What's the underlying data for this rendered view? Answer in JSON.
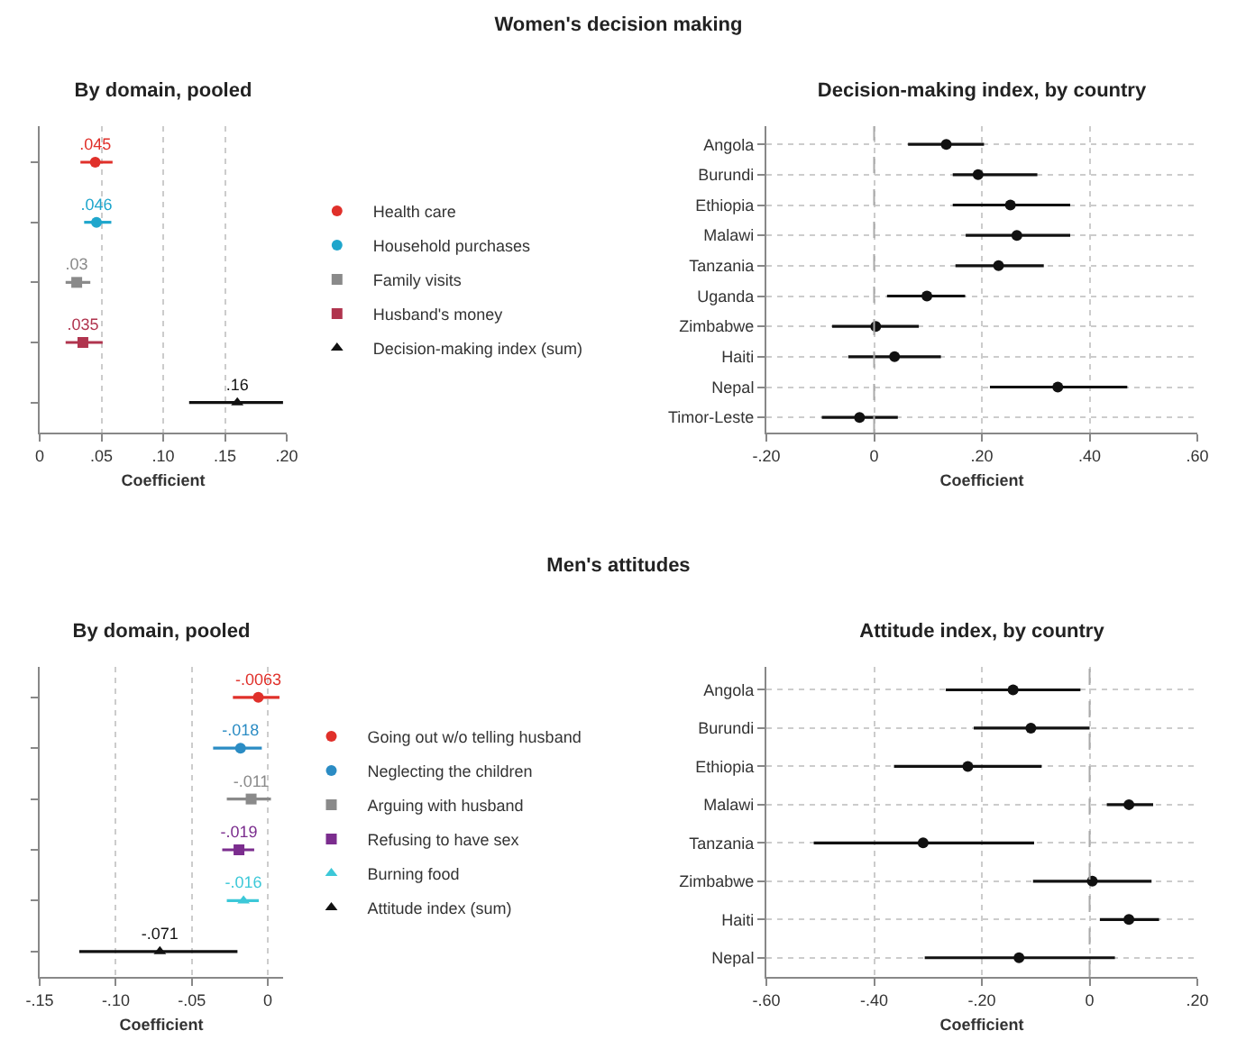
{
  "chart_data": [
    {
      "type": "scatter",
      "orientation": "horizontal",
      "title": "By domain, pooled",
      "annotations": [
        "Women's decision making"
      ],
      "xlabel": "Coefficient",
      "categories": [
        null,
        null,
        null,
        null,
        null
      ],
      "xlim": [
        0,
        0.2
      ],
      "xticks": [
        {
          "value": 0,
          "label": "0"
        },
        {
          "value": 0.05,
          "label": ".05"
        },
        {
          "value": 0.1,
          "label": ".10"
        },
        {
          "value": 0.15,
          "label": ".15"
        },
        {
          "value": 0.2,
          "label": ".20"
        }
      ],
      "grid": "x",
      "legend": "right",
      "tick_labels": "x",
      "series": [
        {
          "name": "Health care",
          "color": "#e0302a",
          "marker": "circle",
          "values": [
            0.045,
            null,
            null,
            null,
            null
          ],
          "errors": [
            [
              0.033,
              0.059
            ],
            null,
            null,
            null,
            null
          ],
          "value_labels": [
            ".045",
            null,
            null,
            null,
            null
          ]
        },
        {
          "name": "Household purchases",
          "color": "#1fa6cc",
          "marker": "circle",
          "values": [
            null,
            0.046,
            null,
            null,
            null
          ],
          "errors": [
            null,
            [
              0.036,
              0.058
            ],
            null,
            null,
            null
          ],
          "value_labels": [
            null,
            ".046",
            null,
            null,
            null
          ]
        },
        {
          "name": "Family visits",
          "color": "#8a8a8a",
          "marker": "square",
          "values": [
            null,
            null,
            0.03,
            null,
            null
          ],
          "errors": [
            null,
            null,
            [
              0.021,
              0.041
            ],
            null,
            null
          ],
          "value_labels": [
            null,
            null,
            ".03",
            null,
            null
          ]
        },
        {
          "name": "Husband's money",
          "color": "#b0344e",
          "marker": "square",
          "values": [
            null,
            null,
            null,
            0.035,
            null
          ],
          "errors": [
            null,
            null,
            null,
            [
              0.021,
              0.051
            ],
            null
          ],
          "value_labels": [
            null,
            null,
            null,
            ".035",
            null
          ]
        },
        {
          "name": "Decision-making index (sum)",
          "color": "#111111",
          "marker": "triangle",
          "values": [
            null,
            null,
            null,
            null,
            0.16
          ],
          "errors": [
            null,
            null,
            null,
            null,
            [
              0.121,
              0.197
            ]
          ],
          "value_labels": [
            null,
            null,
            null,
            null,
            ".16"
          ]
        }
      ]
    },
    {
      "type": "scatter",
      "orientation": "horizontal",
      "title": "Decision-making index, by country",
      "xlabel": "Coefficient",
      "categories": [
        "Angola",
        "Burundi",
        "Ethiopia",
        "Malawi",
        "Tanzania",
        "Uganda",
        "Zimbabwe",
        "Haiti",
        "Nepal",
        "Timor-Leste"
      ],
      "xlim": [
        -0.2,
        0.6
      ],
      "xticks": [
        {
          "value": -0.2,
          "label": "-.20"
        },
        {
          "value": 0,
          "label": "0"
        },
        {
          "value": 0.2,
          "label": ".20"
        },
        {
          "value": 0.4,
          "label": ".40"
        },
        {
          "value": 0.6,
          "label": ".60"
        }
      ],
      "grid": true,
      "ref_lines": [
        {
          "axis": "x",
          "value": 0,
          "line_style": "dashed",
          "color": "#aaaaaa"
        }
      ],
      "series": [
        {
          "color": "#111111",
          "marker": "circle",
          "values": [
            0.134,
            0.193,
            0.253,
            0.265,
            0.231,
            0.098,
            0.003,
            0.038,
            0.341,
            -0.027
          ],
          "errors": [
            [
              0.063,
              0.204
            ],
            [
              0.146,
              0.303
            ],
            [
              0.146,
              0.364
            ],
            [
              0.17,
              0.364
            ],
            [
              0.151,
              0.315
            ],
            [
              0.024,
              0.169
            ],
            [
              -0.078,
              0.083
            ],
            [
              -0.048,
              0.124
            ],
            [
              0.215,
              0.47
            ],
            [
              -0.097,
              0.044
            ]
          ]
        }
      ]
    },
    {
      "type": "scatter",
      "orientation": "horizontal",
      "title": "By domain, pooled",
      "annotations": [
        "Men's attitudes"
      ],
      "xlabel": "Coefficient",
      "categories": [
        null,
        null,
        null,
        null,
        null,
        null
      ],
      "xlim": [
        -0.15,
        0.01
      ],
      "xticks": [
        {
          "value": -0.15,
          "label": "-.15"
        },
        {
          "value": -0.1,
          "label": "-.10"
        },
        {
          "value": -0.05,
          "label": "-.05"
        },
        {
          "value": 0,
          "label": "0"
        }
      ],
      "grid": "x",
      "legend": "right",
      "tick_labels": "x",
      "series": [
        {
          "name": "Going out w/o telling husband",
          "color": "#e0302a",
          "marker": "circle",
          "values": [
            -0.0063,
            null,
            null,
            null,
            null,
            null
          ],
          "errors": [
            [
              -0.023,
              0.0076
            ],
            null,
            null,
            null,
            null,
            null
          ],
          "value_labels": [
            "-.0063",
            null,
            null,
            null,
            null,
            null
          ]
        },
        {
          "name": "Neglecting the children",
          "color": "#2b8cc4",
          "marker": "circle",
          "values": [
            null,
            -0.018,
            null,
            null,
            null,
            null
          ],
          "errors": [
            null,
            [
              -0.036,
              -0.004
            ],
            null,
            null,
            null,
            null
          ],
          "value_labels": [
            null,
            "-.018",
            null,
            null,
            null,
            null
          ]
        },
        {
          "name": "Arguing with husband",
          "color": "#8a8a8a",
          "marker": "square",
          "values": [
            null,
            null,
            -0.011,
            null,
            null,
            null
          ],
          "errors": [
            null,
            null,
            [
              -0.027,
              0.002
            ],
            null,
            null,
            null
          ],
          "value_labels": [
            null,
            null,
            "-.011",
            null,
            null,
            null
          ]
        },
        {
          "name": "Refusing to have sex",
          "color": "#7b2d8e",
          "marker": "square",
          "values": [
            null,
            null,
            null,
            -0.019,
            null,
            null
          ],
          "errors": [
            null,
            null,
            null,
            [
              -0.03,
              -0.009
            ],
            null,
            null
          ],
          "value_labels": [
            null,
            null,
            null,
            "-.019",
            null,
            null
          ]
        },
        {
          "name": "Burning food",
          "color": "#3cc8d8",
          "marker": "triangle",
          "values": [
            null,
            null,
            null,
            null,
            -0.016,
            null
          ],
          "errors": [
            null,
            null,
            null,
            null,
            [
              -0.027,
              -0.006
            ],
            null
          ],
          "value_labels": [
            null,
            null,
            null,
            null,
            "-.016",
            null
          ]
        },
        {
          "name": "Attitude index (sum)",
          "color": "#111111",
          "marker": "triangle",
          "values": [
            null,
            null,
            null,
            null,
            null,
            -0.071
          ],
          "errors": [
            null,
            null,
            null,
            null,
            null,
            [
              -0.124,
              -0.02
            ]
          ],
          "value_labels": [
            null,
            null,
            null,
            null,
            null,
            "-.071"
          ]
        }
      ]
    },
    {
      "type": "scatter",
      "orientation": "horizontal",
      "title": "Attitude index, by country",
      "xlabel": "Coefficient",
      "categories": [
        "Angola",
        "Burundi",
        "Ethiopia",
        "Malawi",
        "Tanzania",
        "Zimbabwe",
        "Haiti",
        "Nepal"
      ],
      "xlim": [
        -0.6,
        0.2
      ],
      "xticks": [
        {
          "value": -0.6,
          "label": "-.60"
        },
        {
          "value": -0.4,
          "label": "-.40"
        },
        {
          "value": -0.2,
          "label": "-.20"
        },
        {
          "value": 0,
          "label": "0"
        },
        {
          "value": 0.2,
          "label": ".20"
        }
      ],
      "grid": true,
      "ref_lines": [
        {
          "axis": "x",
          "value": 0,
          "line_style": "dashed",
          "color": "#aaaaaa"
        }
      ],
      "series": [
        {
          "color": "#111111",
          "marker": "circle",
          "values": [
            -0.142,
            -0.109,
            -0.226,
            0.073,
            -0.309,
            0.005,
            0.073,
            -0.131
          ],
          "errors": [
            [
              -0.267,
              -0.017
            ],
            [
              -0.215,
              0
            ],
            [
              -0.363,
              -0.089
            ],
            [
              0.032,
              0.118
            ],
            [
              -0.512,
              -0.103
            ],
            [
              -0.105,
              0.115
            ],
            [
              0.019,
              0.129
            ],
            [
              -0.306,
              0.047
            ]
          ]
        }
      ]
    }
  ]
}
